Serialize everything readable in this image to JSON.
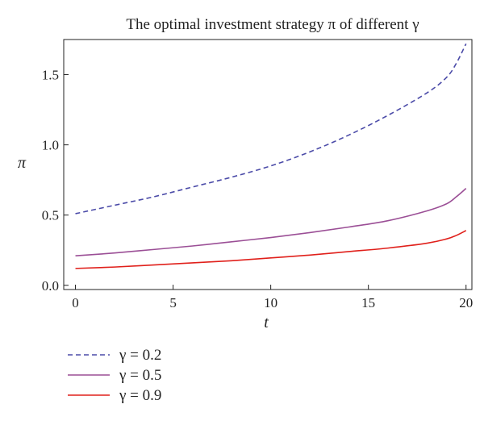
{
  "chart_data": {
    "type": "line",
    "title": "The optimal investment strategy π of different γ",
    "xlabel": "t",
    "ylabel": "π",
    "xlim": [
      -0.6,
      20.3
    ],
    "ylim": [
      -0.03,
      1.75
    ],
    "xticks": [
      0,
      5,
      10,
      15,
      20
    ],
    "xtick_labels": [
      "0",
      "5",
      "10",
      "15",
      "20"
    ],
    "yticks": [
      0.0,
      0.5,
      1.0,
      1.5
    ],
    "ytick_labels": [
      "0.0",
      "0.5",
      "1.0",
      "1.5"
    ],
    "grid": false,
    "legend_position": "bottom-left",
    "x": [
      0,
      2,
      4,
      6,
      8,
      10,
      12,
      14,
      16,
      18,
      19,
      19.5,
      20
    ],
    "series": [
      {
        "name": "γ = 0.2",
        "color": "#4b4ba8",
        "style": "dashed",
        "values": [
          0.51,
          0.57,
          0.63,
          0.7,
          0.77,
          0.85,
          0.95,
          1.07,
          1.21,
          1.37,
          1.48,
          1.58,
          1.72
        ]
      },
      {
        "name": "γ = 0.5",
        "color": "#9b4f96",
        "style": "solid",
        "values": [
          0.21,
          0.23,
          0.255,
          0.28,
          0.31,
          0.34,
          0.375,
          0.415,
          0.46,
          0.53,
          0.58,
          0.63,
          0.69
        ]
      },
      {
        "name": "γ = 0.9",
        "color": "#e0201b",
        "style": "solid",
        "values": [
          0.12,
          0.13,
          0.145,
          0.16,
          0.175,
          0.195,
          0.215,
          0.24,
          0.265,
          0.3,
          0.33,
          0.355,
          0.39
        ]
      }
    ]
  }
}
